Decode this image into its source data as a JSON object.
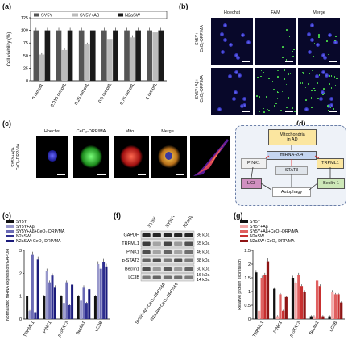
{
  "panels": {
    "a": "(a)",
    "b": "(b)",
    "c": "(c)",
    "d": "(d)",
    "e": "(e)",
    "f": "(f)",
    "g": "(g)"
  },
  "panel_b": {
    "headers": [
      "Hoechst",
      "FAM",
      "Merge"
    ],
    "row1": [
      "SY5Y+",
      "CeO₂-DRP/MA"
    ],
    "row2": [
      "SY5Y+Aβ+",
      "CeO₂-DRP/MA"
    ]
  },
  "panel_c": {
    "headers": [
      "Hoechst",
      "CeO₂-DRP/MA",
      "Mito",
      "Merge"
    ],
    "row": [
      "SY5Y+Aβ+",
      "CeO₂-DRP/MA"
    ]
  },
  "panel_d": {
    "mito": [
      "Mitochondria",
      "in AD"
    ],
    "mirna": "miRNA-204",
    "pink1": "PINK1",
    "trpml1": "TRPML1",
    "stat3": "STAT3",
    "lc3": "LC3",
    "beclin": "Beclin-1",
    "autophagy": "Autophagy"
  },
  "panel_f": {
    "lanes": [
      "SY5Y",
      "SY5Y+Aβ",
      "N2aSW",
      "SY5Y+Aβ+CeO₂-DRP/MA",
      "N2aSW+CeO₂-DRP/MA"
    ],
    "proteins": [
      "GAPDH",
      "TRPML1",
      "PINK1",
      "p-STAT3",
      "Beclin1",
      "LC3B"
    ],
    "sizes": [
      "36 kDa",
      "65 kDa",
      "46 kDa",
      "88 kDa",
      "60 kDa",
      "16 kDa",
      "14 kDa"
    ]
  },
  "chart_data": [
    {
      "panel": "a",
      "type": "bar",
      "ylabel": "Cell viability (%)",
      "ylim": [
        0,
        125
      ],
      "yticks": [
        0,
        25,
        50,
        75,
        100,
        125
      ],
      "categories": [
        "0 mmol/L",
        "0.015 mmol/L",
        "0.25 mmol/L",
        "0.5 mmol/L",
        "0.75 mmol/L",
        "1 mmol/L"
      ],
      "series": [
        {
          "name": "SY5Y",
          "color": "#555555",
          "values": [
            100,
            100,
            100,
            100,
            100,
            100
          ]
        },
        {
          "name": "SY5Y+Aβ",
          "color": "#bbbbbb",
          "values": [
            52,
            61,
            72,
            83,
            86,
            96
          ]
        },
        {
          "name": "N2aSW",
          "color": "#1a1a1a",
          "values": [
            100,
            100,
            100,
            100,
            100,
            100
          ]
        }
      ],
      "legend_position": "top"
    },
    {
      "panel": "e",
      "type": "bar",
      "ylabel": "Normalized mRNA expression/GAPDH",
      "ylim": [
        0,
        3
      ],
      "yticks": [
        0,
        1,
        2,
        3
      ],
      "categories": [
        "TRPML1",
        "PINK1",
        "p-STAT3",
        "Beclin1",
        "LC3B"
      ],
      "series": [
        {
          "name": "SY5Y",
          "color": "#111111",
          "values": [
            1.0,
            1.0,
            1.0,
            1.0,
            1.0
          ]
        },
        {
          "name": "SY5Y+Aβ",
          "color": "#9999cc",
          "values": [
            0.35,
            2.1,
            0.7,
            0.8,
            2.4
          ]
        },
        {
          "name": "SY5Y+Aβ+CeO₂-DRP/MA",
          "color": "#6b6bb5",
          "values": [
            2.8,
            1.6,
            1.6,
            1.4,
            2.2
          ]
        },
        {
          "name": "N2aSW",
          "color": "#2e2e8f",
          "values": [
            0.3,
            1.9,
            0.6,
            0.7,
            2.5
          ]
        },
        {
          "name": "N2aSW+CeO₂-DRP/MA",
          "color": "#1a1a7a",
          "values": [
            2.6,
            1.4,
            1.5,
            1.3,
            2.3
          ]
        }
      ],
      "legend_position": "top"
    },
    {
      "panel": "g",
      "type": "bar",
      "ylabel": "Relative protein expression",
      "ylim": [
        0,
        2.5
      ],
      "yticks": [
        0,
        0.5,
        1.0,
        1.5,
        2.0,
        2.5
      ],
      "categories": [
        "TRPML1",
        "PINK1",
        "p-STAT3",
        "Beclin1",
        "LC3B"
      ],
      "series": [
        {
          "name": "SY5Y",
          "color": "#111111",
          "values": [
            1.7,
            1.1,
            1.5,
            0.1,
            0.1
          ]
        },
        {
          "name": "SY5Y+Aβ",
          "color": "#f2a8a8",
          "values": [
            0.3,
            0.1,
            1.3,
            0.1,
            1.0
          ]
        },
        {
          "name": "SY5Y+Aβ+CeO₂-DRP/MA",
          "color": "#e06060",
          "values": [
            1.5,
            0.9,
            1.6,
            1.4,
            0.9
          ]
        },
        {
          "name": "N2aSW",
          "color": "#c83030",
          "values": [
            1.6,
            0.3,
            1.2,
            1.2,
            0.9
          ]
        },
        {
          "name": "N2aSW+CeO₂-DRP/MA",
          "color": "#8e1414",
          "values": [
            2.1,
            0.8,
            1.0,
            0.1,
            0.6
          ]
        }
      ],
      "legend_position": "top"
    }
  ]
}
